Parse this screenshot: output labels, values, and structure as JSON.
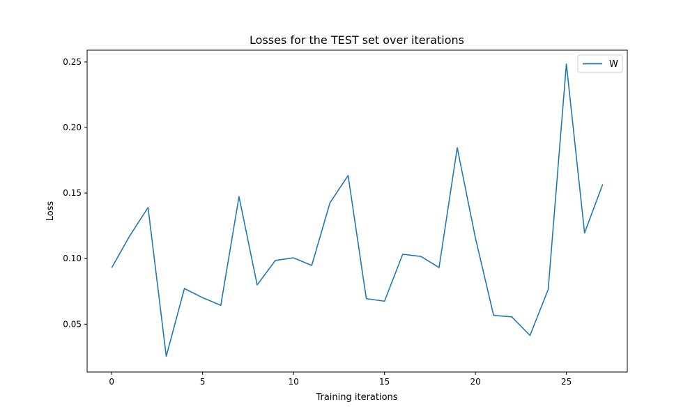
{
  "chart_data": {
    "type": "line",
    "title": "Losses for the TEST set over iterations",
    "xlabel": "Training iterations",
    "ylabel": "Loss",
    "xlim": [
      -1.35,
      28.35
    ],
    "ylim": [
      0.0135,
      0.259
    ],
    "xticks": [
      0,
      5,
      10,
      15,
      20,
      25
    ],
    "xtick_labels": [
      "0",
      "5",
      "10",
      "15",
      "20",
      "25"
    ],
    "yticks": [
      0.05,
      0.1,
      0.15,
      0.2,
      0.25
    ],
    "ytick_labels": [
      "0.05",
      "0.10",
      "0.15",
      "0.20",
      "0.25"
    ],
    "grid": false,
    "legend_position": "top-right",
    "series": [
      {
        "name": "W",
        "color": "#1f77b4",
        "x": [
          0,
          1,
          2,
          3,
          4,
          5,
          6,
          7,
          8,
          9,
          10,
          11,
          12,
          13,
          14,
          15,
          16,
          17,
          18,
          19,
          20,
          21,
          22,
          23,
          24,
          25,
          26,
          27
        ],
        "y": [
          0.093,
          0.1175,
          0.139,
          0.0255,
          0.0772,
          0.0702,
          0.0644,
          0.1473,
          0.0799,
          0.0986,
          0.1006,
          0.0948,
          0.1425,
          0.1634,
          0.0695,
          0.0675,
          0.1033,
          0.1017,
          0.0932,
          0.1846,
          0.1157,
          0.0567,
          0.0556,
          0.0414,
          0.0764,
          0.2484,
          0.1196,
          0.1567
        ]
      }
    ]
  }
}
